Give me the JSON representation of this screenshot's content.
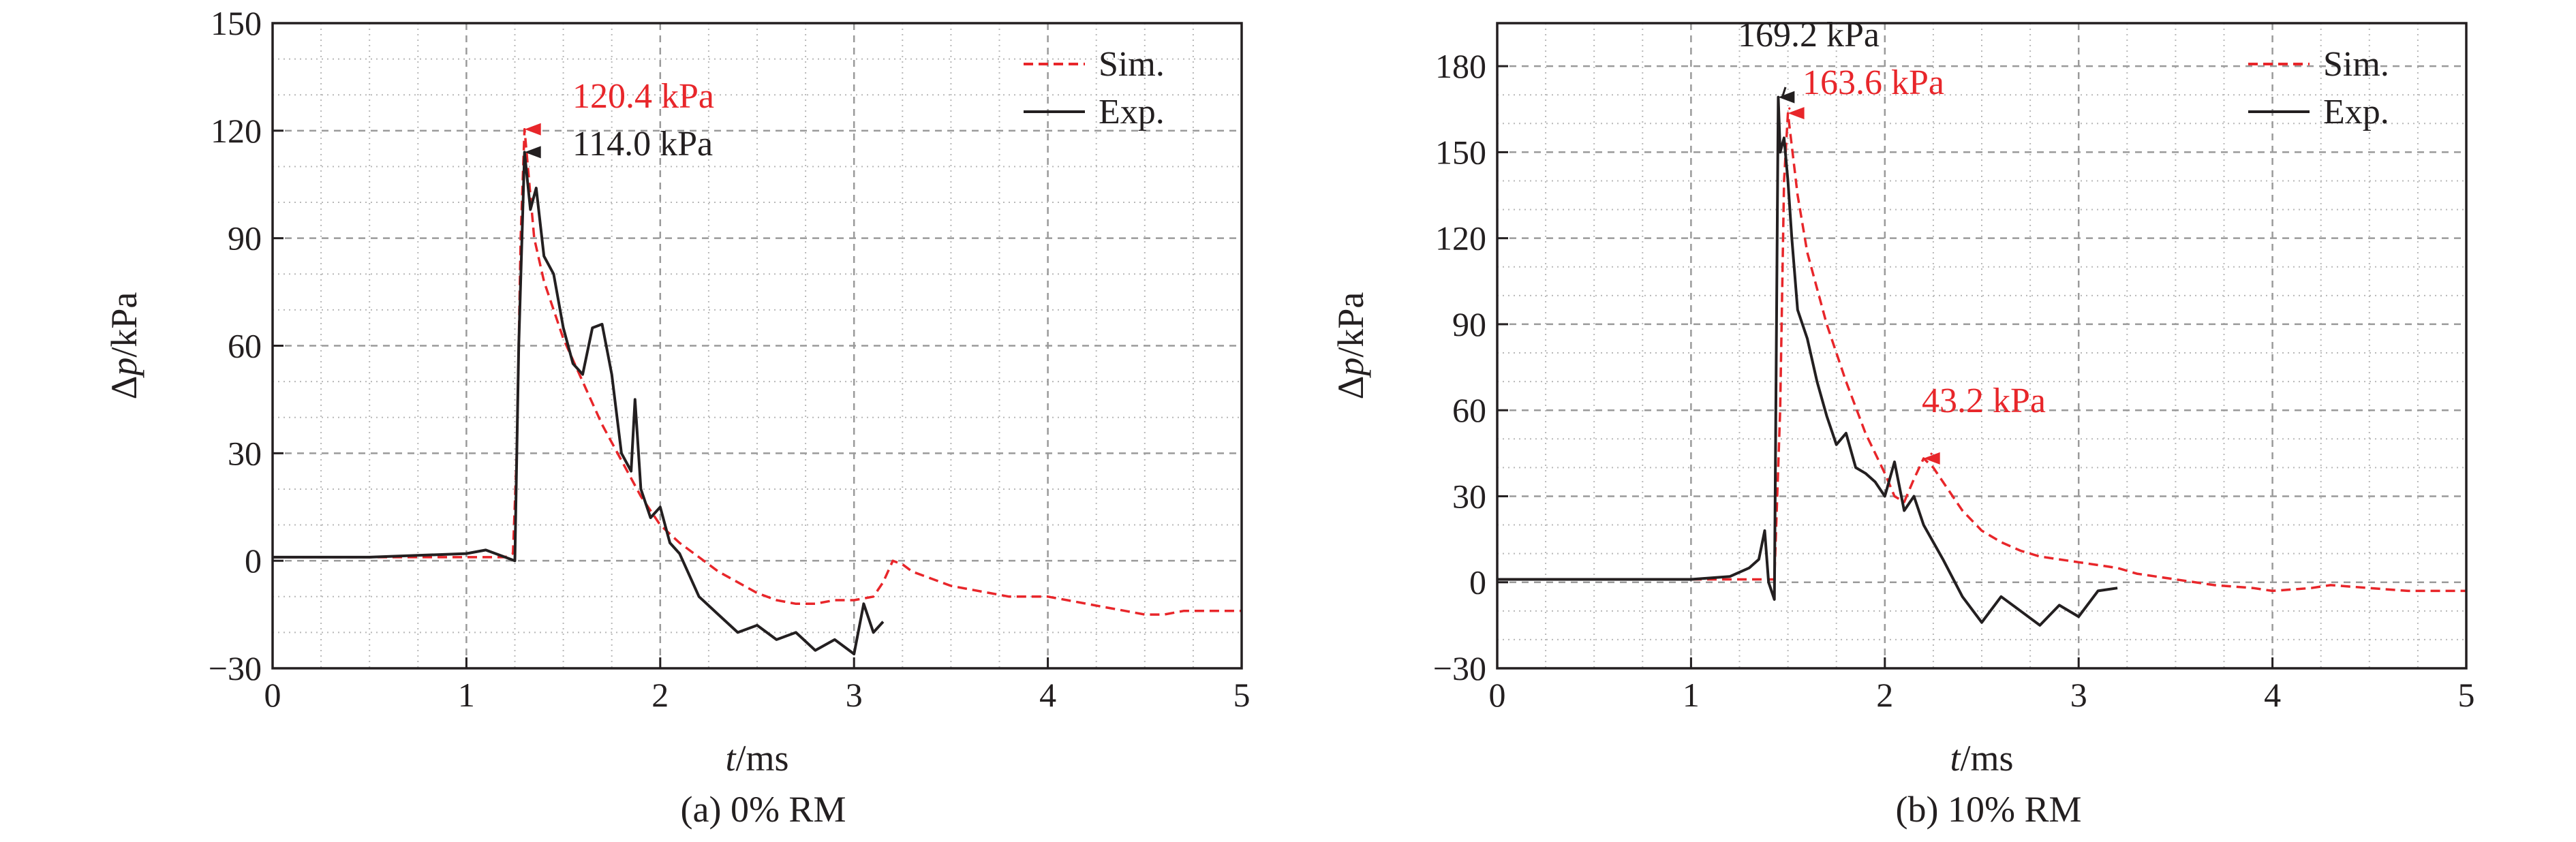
{
  "chart_data": [
    {
      "type": "line",
      "caption": "(a) 0% RM",
      "xlabel_var": "t",
      "xlabel_unit": "/ms",
      "ylabel_prefix": "Δ",
      "ylabel_var": "p",
      "ylabel_unit": "/kPa",
      "xlim": [
        0,
        5
      ],
      "ylim": [
        -30,
        150
      ],
      "xticks": [
        0,
        1,
        2,
        3,
        4,
        5
      ],
      "yticks": [
        -30,
        0,
        30,
        60,
        90,
        120,
        150
      ],
      "ytick_labels": [
        "−30",
        "0",
        "30",
        "60",
        "90",
        "120",
        "150"
      ],
      "grid": true,
      "legend_position": "top-right",
      "series": [
        {
          "name": "Sim.",
          "color": "#e8262a",
          "style": "dashed",
          "x": [
            0,
            0.5,
            1.0,
            1.2,
            1.24,
            1.26,
            1.28,
            1.3,
            1.35,
            1.4,
            1.5,
            1.6,
            1.7,
            1.8,
            1.9,
            2.0,
            2.1,
            2.2,
            2.3,
            2.4,
            2.5,
            2.6,
            2.7,
            2.8,
            2.9,
            3.0,
            3.1,
            3.15,
            3.2,
            3.25,
            3.3,
            3.4,
            3.5,
            3.6,
            3.7,
            3.8,
            3.9,
            4.0,
            4.1,
            4.2,
            4.3,
            4.4,
            4.5,
            4.6,
            4.7,
            4.8,
            4.9,
            5.0
          ],
          "y": [
            1,
            1,
            1,
            1,
            2,
            30,
            90,
            120.4,
            90,
            78,
            62,
            50,
            38,
            28,
            18,
            10,
            5,
            1,
            -3,
            -6,
            -9,
            -11,
            -12,
            -12,
            -11,
            -11,
            -10,
            -6,
            0,
            -1,
            -3,
            -5,
            -7,
            -8,
            -9,
            -10,
            -10,
            -10,
            -11,
            -12,
            -13,
            -14,
            -15,
            -15,
            -14,
            -14,
            -14,
            -14
          ]
        },
        {
          "name": "Exp.",
          "color": "#231f20",
          "style": "solid",
          "x": [
            0,
            0.5,
            1.0,
            1.1,
            1.2,
            1.25,
            1.27,
            1.3,
            1.33,
            1.36,
            1.4,
            1.45,
            1.5,
            1.55,
            1.6,
            1.65,
            1.7,
            1.75,
            1.8,
            1.85,
            1.87,
            1.9,
            1.95,
            2.0,
            2.05,
            2.1,
            2.2,
            2.3,
            2.4,
            2.5,
            2.6,
            2.7,
            2.8,
            2.9,
            3.0,
            3.05,
            3.1,
            3.15
          ],
          "y": [
            1,
            1,
            2,
            3,
            1,
            0,
            60,
            114.0,
            98,
            104,
            85,
            80,
            65,
            55,
            52,
            65,
            66,
            52,
            30,
            25,
            45,
            20,
            12,
            15,
            5,
            2,
            -10,
            -15,
            -20,
            -18,
            -22,
            -20,
            -25,
            -22,
            -26,
            -12,
            -20,
            -17
          ]
        }
      ],
      "annotations": [
        {
          "text": "120.4 kPa",
          "color": "#e8262a",
          "x": 1.3,
          "y": 120.4
        },
        {
          "text": "114.0 kPa",
          "color": "#231f20",
          "x": 1.3,
          "y": 114.0
        }
      ]
    },
    {
      "type": "line",
      "caption": "(b) 10% RM",
      "xlabel_var": "t",
      "xlabel_unit": "/ms",
      "ylabel_prefix": "Δ",
      "ylabel_var": "p",
      "ylabel_unit": "/kPa",
      "xlim": [
        0,
        5
      ],
      "ylim": [
        -30,
        195
      ],
      "xticks": [
        0,
        1,
        2,
        3,
        4,
        5
      ],
      "yticks": [
        -30,
        0,
        30,
        60,
        90,
        120,
        150,
        180
      ],
      "ytick_labels": [
        "−30",
        "0",
        "30",
        "60",
        "90",
        "120",
        "150",
        "180"
      ],
      "grid": true,
      "legend_position": "top-right",
      "series": [
        {
          "name": "Sim.",
          "color": "#e8262a",
          "style": "dashed",
          "x": [
            0,
            0.5,
            1.0,
            1.3,
            1.43,
            1.46,
            1.48,
            1.5,
            1.55,
            1.6,
            1.7,
            1.8,
            1.9,
            2.0,
            2.05,
            2.1,
            2.15,
            2.2,
            2.25,
            2.3,
            2.4,
            2.5,
            2.6,
            2.7,
            2.8,
            2.9,
            3.0,
            3.1,
            3.2,
            3.3,
            3.5,
            3.7,
            3.9,
            4.0,
            4.2,
            4.3,
            4.5,
            4.7,
            4.9,
            5.0
          ],
          "y": [
            1,
            1,
            1,
            1,
            1,
            60,
            140,
            163.6,
            135,
            115,
            90,
            70,
            52,
            38,
            30,
            28,
            36,
            43.2,
            40,
            35,
            25,
            18,
            14,
            11,
            9,
            8,
            7,
            6,
            5,
            3,
            1,
            -1,
            -2,
            -3,
            -2,
            -1,
            -2,
            -3,
            -3,
            -3
          ]
        },
        {
          "name": "Exp.",
          "color": "#231f20",
          "style": "solid",
          "x": [
            0,
            0.5,
            1.0,
            1.2,
            1.3,
            1.35,
            1.38,
            1.4,
            1.43,
            1.45,
            1.46,
            1.48,
            1.5,
            1.52,
            1.55,
            1.6,
            1.65,
            1.7,
            1.75,
            1.8,
            1.85,
            1.9,
            1.95,
            2.0,
            2.05,
            2.1,
            2.15,
            2.2,
            2.3,
            2.4,
            2.5,
            2.6,
            2.7,
            2.8,
            2.9,
            3.0,
            3.1,
            3.2
          ],
          "y": [
            1,
            1,
            1,
            2,
            5,
            8,
            18,
            0,
            -6,
            169.2,
            150,
            155,
            140,
            120,
            95,
            85,
            70,
            58,
            48,
            52,
            40,
            38,
            35,
            30,
            42,
            25,
            30,
            20,
            8,
            -5,
            -14,
            -5,
            -10,
            -15,
            -8,
            -12,
            -3,
            -2
          ]
        }
      ],
      "annotations": [
        {
          "text": "169.2 kPa",
          "color": "#231f20",
          "x": 1.45,
          "y": 169.2
        },
        {
          "text": "163.6 kPa",
          "color": "#e8262a",
          "x": 1.5,
          "y": 163.6
        },
        {
          "text": "43.2 kPa",
          "color": "#e8262a",
          "x": 2.2,
          "y": 43.2
        }
      ]
    }
  ]
}
